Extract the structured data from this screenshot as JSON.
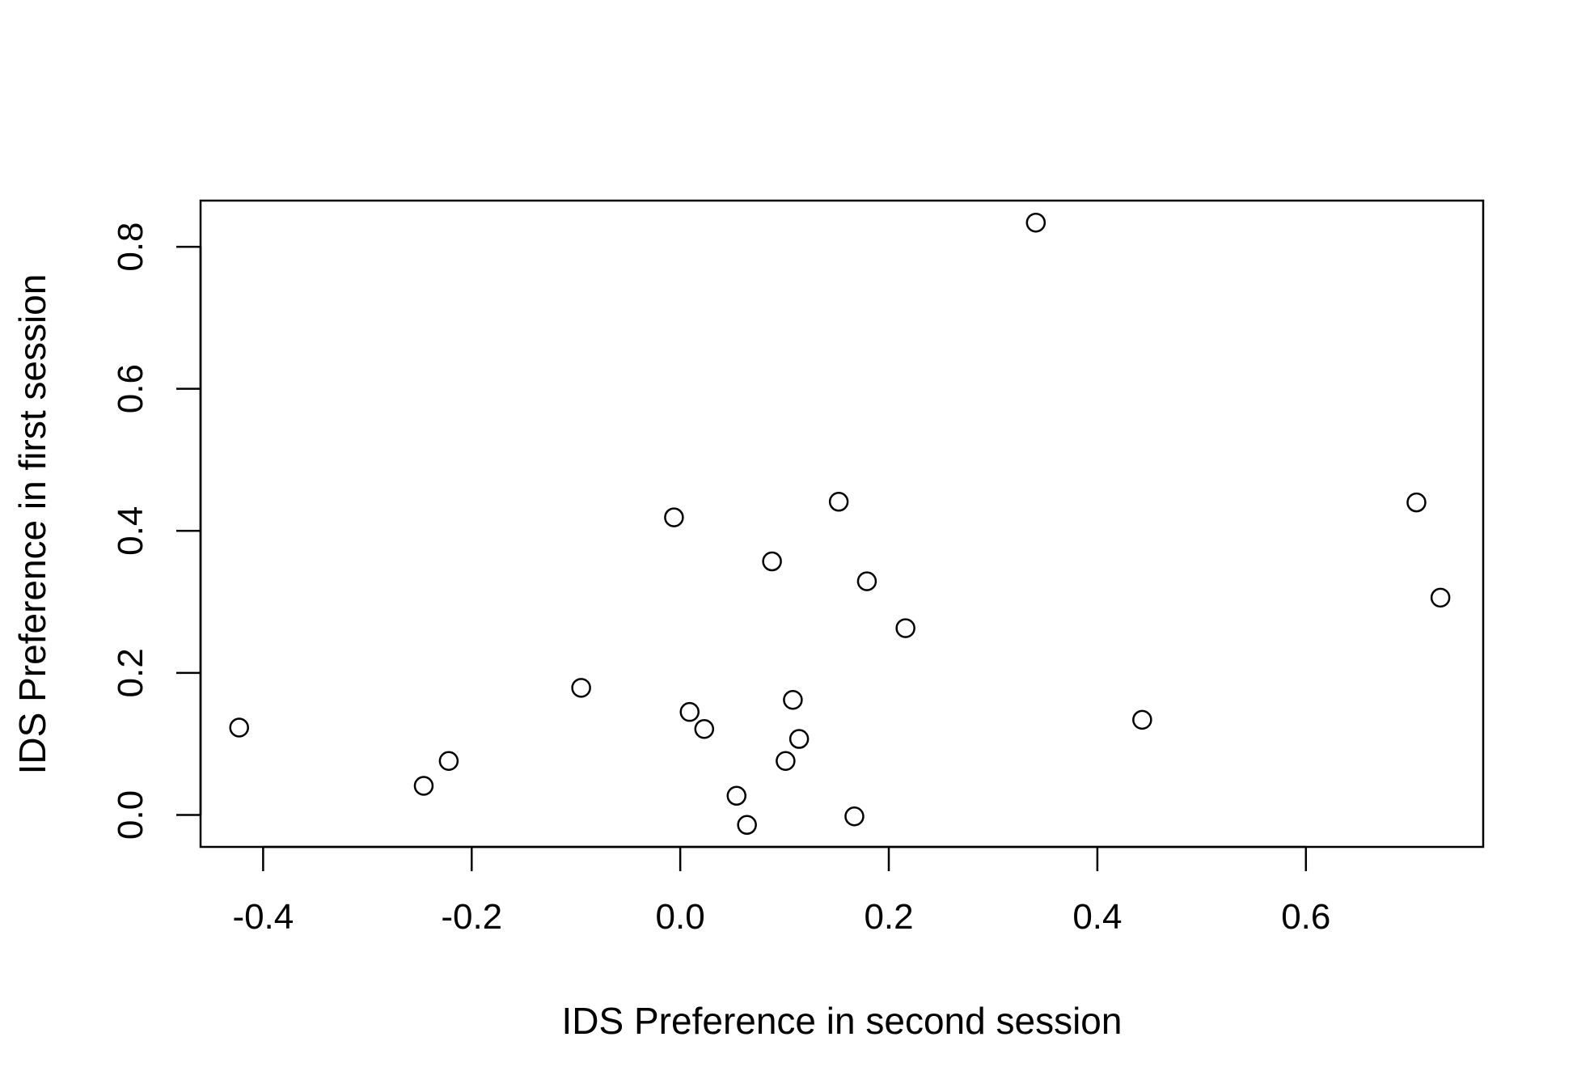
{
  "chart_data": {
    "type": "scatter",
    "title": "",
    "xlabel": "IDS Preference in second session",
    "ylabel": "IDS Preference in first session",
    "xlim": [
      -0.46,
      0.77
    ],
    "ylim": [
      -0.045,
      0.865
    ],
    "xticks": [
      -0.4,
      -0.2,
      0.0,
      0.2,
      0.4,
      0.6
    ],
    "xtick_labels": [
      "-0.4",
      "-0.2",
      "0.0",
      "0.2",
      "0.4",
      "0.6"
    ],
    "yticks": [
      0.0,
      0.2,
      0.4,
      0.6,
      0.8
    ],
    "ytick_labels": [
      "0.0",
      "0.2",
      "0.4",
      "0.6",
      "0.8"
    ],
    "grid": false,
    "legend": "none",
    "marker": "open-circle",
    "points": [
      {
        "x": -0.423,
        "y": 0.123
      },
      {
        "x": -0.246,
        "y": 0.041
      },
      {
        "x": -0.222,
        "y": 0.076
      },
      {
        "x": -0.095,
        "y": 0.179
      },
      {
        "x": -0.006,
        "y": 0.419
      },
      {
        "x": 0.009,
        "y": 0.145
      },
      {
        "x": 0.023,
        "y": 0.121
      },
      {
        "x": 0.054,
        "y": 0.027
      },
      {
        "x": 0.064,
        "y": -0.014
      },
      {
        "x": 0.088,
        "y": 0.357
      },
      {
        "x": 0.101,
        "y": 0.076
      },
      {
        "x": 0.108,
        "y": 0.162
      },
      {
        "x": 0.114,
        "y": 0.107
      },
      {
        "x": 0.152,
        "y": 0.441
      },
      {
        "x": 0.167,
        "y": -0.002
      },
      {
        "x": 0.179,
        "y": 0.329
      },
      {
        "x": 0.216,
        "y": 0.263
      },
      {
        "x": 0.341,
        "y": 0.834
      },
      {
        "x": 0.443,
        "y": 0.134
      },
      {
        "x": 0.706,
        "y": 0.44
      },
      {
        "x": 0.729,
        "y": 0.306
      }
    ]
  }
}
